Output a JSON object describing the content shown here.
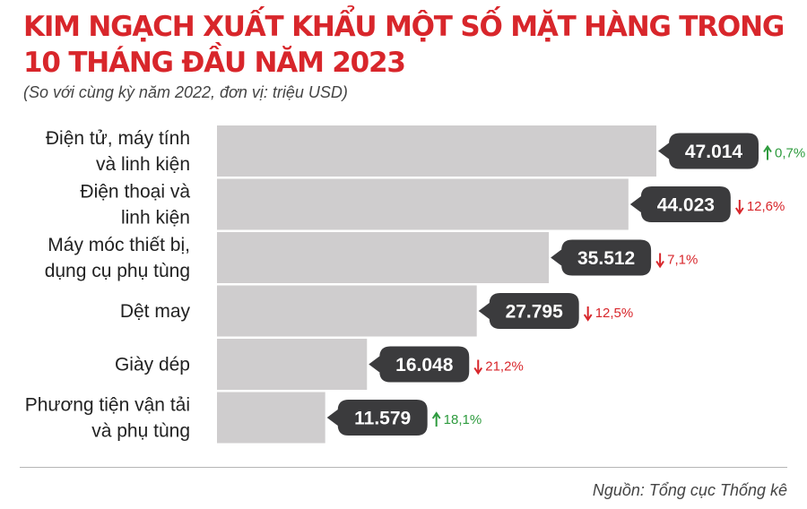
{
  "header": {
    "title": "KIM NGẠCH XUẤT KHẨU MỘT SỐ MẶT HÀNG TRONG 10 THÁNG ĐẦU NĂM 2023",
    "subtitle": "(So với cùng kỳ năm 2022, đơn vị: triệu USD)"
  },
  "footer": {
    "source": "Nguồn: Tổng cục Thống kê"
  },
  "colors": {
    "bar": "#cfcdce",
    "bubble": "#3b3b3d",
    "title": "#d8262b",
    "up": "#2e9b3e",
    "down": "#d8262b"
  },
  "chart_data": {
    "type": "bar",
    "orientation": "horizontal",
    "title": "KIM NGẠCH XUẤT KHẨU MỘT SỐ MẶT HÀNG TRONG 10 THÁNG ĐẦU NĂM 2023",
    "subtitle": "(So với cùng kỳ năm 2022, đơn vị: triệu USD)",
    "categories": [
      [
        "Điện tử, máy tính",
        "và linh kiện"
      ],
      [
        "Điện thoại và",
        "linh kiện"
      ],
      [
        "Máy móc thiết bị,",
        "dụng cụ phụ tùng"
      ],
      [
        "Dệt may"
      ],
      [
        "Giày dép"
      ],
      [
        "Phương tiện vận tải",
        "và phụ tùng"
      ]
    ],
    "values": [
      47014,
      44023,
      35512,
      27795,
      16048,
      11579
    ],
    "value_labels": [
      "47.014",
      "44.023",
      "35.512",
      "27.795",
      "16.048",
      "11.579"
    ],
    "change_labels": [
      "0,7%",
      "12,6%",
      "7,1%",
      "12,5%",
      "21,2%",
      "18,1%"
    ],
    "change_direction": [
      "up",
      "down",
      "down",
      "down",
      "down",
      "up"
    ],
    "xlim": [
      0,
      47014
    ],
    "grid": false,
    "legend": false
  }
}
